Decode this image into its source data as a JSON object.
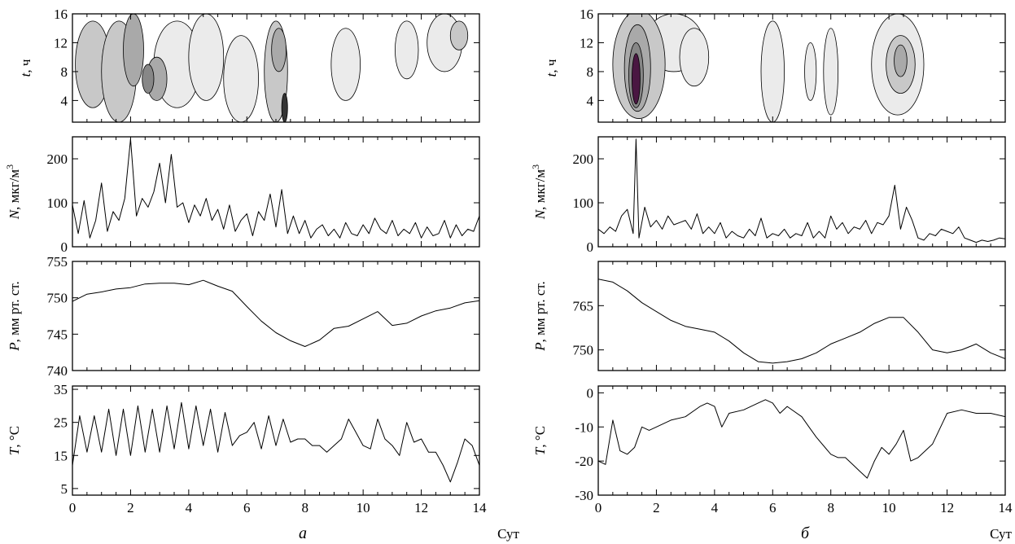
{
  "figure": {
    "unit_label": "Сут",
    "columns": [
      {
        "letter": "a"
      },
      {
        "letter": "б"
      }
    ]
  },
  "chart_data": [
    {
      "id": "a-contour",
      "column": "a",
      "type": "heatmap",
      "ylabel_var": "t",
      "ylabel_unit": ", ч",
      "xlim": [
        0,
        14
      ],
      "ylim": [
        1,
        16
      ],
      "yticks": [
        4,
        8,
        12,
        16
      ],
      "levels": [
        "#ebebeb",
        "#c8c8c8",
        "#a9a9a9",
        "#878787",
        "#333333"
      ],
      "blobs": [
        {
          "x": 0.7,
          "y": 9,
          "rx": 0.6,
          "ry": 6,
          "level": 2
        },
        {
          "x": 1.6,
          "y": 8,
          "rx": 0.6,
          "ry": 7,
          "level": 2
        },
        {
          "x": 2.1,
          "y": 11,
          "rx": 0.35,
          "ry": 5,
          "level": 3
        },
        {
          "x": 2.9,
          "y": 7,
          "rx": 0.35,
          "ry": 3,
          "level": 3
        },
        {
          "x": 2.6,
          "y": 7,
          "rx": 0.2,
          "ry": 2,
          "level": 4
        },
        {
          "x": 3.6,
          "y": 9,
          "rx": 0.8,
          "ry": 6,
          "level": 1
        },
        {
          "x": 4.6,
          "y": 10,
          "rx": 0.6,
          "ry": 6,
          "level": 1
        },
        {
          "x": 5.8,
          "y": 7,
          "rx": 0.6,
          "ry": 6,
          "level": 1
        },
        {
          "x": 7.0,
          "y": 8,
          "rx": 0.4,
          "ry": 7,
          "level": 2
        },
        {
          "x": 7.1,
          "y": 11,
          "rx": 0.25,
          "ry": 3,
          "level": 3
        },
        {
          "x": 7.3,
          "y": 3,
          "rx": 0.1,
          "ry": 2,
          "level": 5
        },
        {
          "x": 9.4,
          "y": 9,
          "rx": 0.5,
          "ry": 5,
          "level": 1
        },
        {
          "x": 11.5,
          "y": 11,
          "rx": 0.4,
          "ry": 4,
          "level": 1
        },
        {
          "x": 12.8,
          "y": 12,
          "rx": 0.6,
          "ry": 4,
          "level": 1
        },
        {
          "x": 13.3,
          "y": 13,
          "rx": 0.3,
          "ry": 2,
          "level": 2
        }
      ]
    },
    {
      "id": "a-N",
      "column": "a",
      "type": "line",
      "ylabel_var": "N",
      "ylabel_unit": ", мкг/м",
      "ylabel_sup": "3",
      "xlim": [
        0,
        14
      ],
      "ylim": [
        0,
        250
      ],
      "yticks": [
        0,
        100,
        200
      ],
      "x": [
        0,
        0.2,
        0.4,
        0.6,
        0.8,
        1,
        1.2,
        1.4,
        1.6,
        1.8,
        2,
        2.2,
        2.4,
        2.6,
        2.8,
        3,
        3.2,
        3.4,
        3.6,
        3.8,
        4,
        4.2,
        4.4,
        4.6,
        4.8,
        5,
        5.2,
        5.4,
        5.6,
        5.8,
        6,
        6.2,
        6.4,
        6.6,
        6.8,
        7,
        7.2,
        7.4,
        7.6,
        7.8,
        8,
        8.2,
        8.4,
        8.6,
        8.8,
        9,
        9.2,
        9.4,
        9.6,
        9.8,
        10,
        10.2,
        10.4,
        10.6,
        10.8,
        11,
        11.2,
        11.4,
        11.6,
        11.8,
        12,
        12.2,
        12.4,
        12.6,
        12.8,
        13,
        13.2,
        13.4,
        13.6,
        13.8,
        14
      ],
      "y": [
        95,
        30,
        105,
        20,
        60,
        145,
        35,
        80,
        60,
        110,
        245,
        70,
        110,
        90,
        125,
        190,
        100,
        210,
        90,
        100,
        55,
        95,
        70,
        110,
        60,
        85,
        40,
        95,
        35,
        60,
        75,
        25,
        80,
        60,
        120,
        45,
        130,
        30,
        70,
        30,
        60,
        20,
        40,
        50,
        25,
        40,
        20,
        55,
        30,
        25,
        50,
        30,
        65,
        40,
        30,
        60,
        25,
        40,
        30,
        55,
        20,
        45,
        25,
        30,
        60,
        20,
        50,
        25,
        40,
        35,
        70
      ]
    },
    {
      "id": "a-P",
      "column": "a",
      "type": "line",
      "ylabel_var": "P",
      "ylabel_unit": ", мм рт. ст.",
      "xlim": [
        0,
        14
      ],
      "ylim": [
        740,
        755
      ],
      "yticks": [
        740,
        745,
        750,
        755
      ],
      "x": [
        0,
        0.5,
        1,
        1.5,
        2,
        2.5,
        3,
        3.5,
        4,
        4.5,
        5,
        5.5,
        6,
        6.5,
        7,
        7.5,
        8,
        8.5,
        9,
        9.5,
        10,
        10.5,
        11,
        11.5,
        12,
        12.5,
        13,
        13.5,
        14
      ],
      "y": [
        749.5,
        750.5,
        750.8,
        751.2,
        751.4,
        751.9,
        752,
        752,
        751.8,
        752.4,
        751.6,
        750.9,
        748.8,
        746.8,
        745.2,
        744.1,
        743.3,
        744.2,
        745.8,
        746.1,
        747.1,
        748.1,
        746.2,
        746.5,
        747.5,
        748.2,
        748.6,
        749.3,
        749.6
      ]
    },
    {
      "id": "a-T",
      "column": "a",
      "type": "line",
      "ylabel_var": "T",
      "ylabel_unit": ", °C",
      "xlim": [
        0,
        14
      ],
      "ylim": [
        3,
        36
      ],
      "yticks": [
        5,
        15,
        25,
        35
      ],
      "x": [
        0,
        0.25,
        0.5,
        0.75,
        1,
        1.25,
        1.5,
        1.75,
        2,
        2.25,
        2.5,
        2.75,
        3,
        3.25,
        3.5,
        3.75,
        4,
        4.25,
        4.5,
        4.75,
        5,
        5.25,
        5.5,
        5.75,
        6,
        6.25,
        6.5,
        6.75,
        7,
        7.25,
        7.5,
        7.75,
        8,
        8.25,
        8.5,
        8.75,
        9,
        9.25,
        9.5,
        9.75,
        10,
        10.25,
        10.5,
        10.75,
        11,
        11.25,
        11.5,
        11.75,
        12,
        12.25,
        12.5,
        12.75,
        13,
        13.25,
        13.5,
        13.75,
        14
      ],
      "y": [
        12,
        27,
        16,
        27,
        16,
        29,
        15,
        29,
        15,
        30,
        16,
        29,
        16,
        30,
        17,
        31,
        17,
        30,
        18,
        29,
        16,
        28,
        18,
        21,
        22,
        25,
        17,
        27,
        18,
        26,
        19,
        20,
        20,
        18,
        18,
        16,
        18,
        20,
        26,
        22,
        18,
        17,
        26,
        20,
        18,
        15,
        25,
        19,
        20,
        16,
        16,
        12,
        7,
        13,
        20,
        18,
        12
      ]
    },
    {
      "id": "b-contour",
      "column": "б",
      "type": "heatmap",
      "ylabel_var": "t",
      "ylabel_unit": ", ч",
      "xlim": [
        0,
        14
      ],
      "ylim": [
        1,
        16
      ],
      "yticks": [
        4,
        8,
        12,
        16
      ],
      "levels": [
        "#ebebeb",
        "#c8c8c8",
        "#a9a9a9",
        "#878787",
        "#4a1742"
      ],
      "blobs": [
        {
          "x": 1.4,
          "y": 9,
          "rx": 0.9,
          "ry": 7.5,
          "level": 2
        },
        {
          "x": 1.35,
          "y": 8.5,
          "rx": 0.45,
          "ry": 6,
          "level": 3
        },
        {
          "x": 1.3,
          "y": 7.5,
          "rx": 0.25,
          "ry": 4.5,
          "level": 4
        },
        {
          "x": 1.3,
          "y": 7,
          "rx": 0.14,
          "ry": 3.5,
          "level": 5
        },
        {
          "x": 2.6,
          "y": 12,
          "rx": 1.0,
          "ry": 4,
          "level": 1
        },
        {
          "x": 3.3,
          "y": 10,
          "rx": 0.5,
          "ry": 4,
          "level": 1
        },
        {
          "x": 6.0,
          "y": 8,
          "rx": 0.4,
          "ry": 7,
          "level": 1
        },
        {
          "x": 7.3,
          "y": 8,
          "rx": 0.2,
          "ry": 4,
          "level": 1
        },
        {
          "x": 8.0,
          "y": 8,
          "rx": 0.25,
          "ry": 6,
          "level": 1
        },
        {
          "x": 10.3,
          "y": 9,
          "rx": 0.9,
          "ry": 7,
          "level": 1
        },
        {
          "x": 10.4,
          "y": 9,
          "rx": 0.5,
          "ry": 4,
          "level": 2
        },
        {
          "x": 10.4,
          "y": 9.5,
          "rx": 0.22,
          "ry": 2.2,
          "level": 3
        }
      ]
    },
    {
      "id": "b-N",
      "column": "б",
      "type": "line",
      "ylabel_var": "N",
      "ylabel_unit": ", мкг/м",
      "ylabel_sup": "3",
      "xlim": [
        0,
        14
      ],
      "ylim": [
        0,
        250
      ],
      "yticks": [
        0,
        100,
        200
      ],
      "x": [
        0,
        0.2,
        0.4,
        0.6,
        0.8,
        1,
        1.2,
        1.3,
        1.4,
        1.6,
        1.8,
        2,
        2.2,
        2.4,
        2.6,
        2.8,
        3,
        3.2,
        3.4,
        3.6,
        3.8,
        4,
        4.2,
        4.4,
        4.6,
        4.8,
        5,
        5.2,
        5.4,
        5.6,
        5.8,
        6,
        6.2,
        6.4,
        6.6,
        6.8,
        7,
        7.2,
        7.4,
        7.6,
        7.8,
        8,
        8.2,
        8.4,
        8.6,
        8.8,
        9,
        9.2,
        9.4,
        9.6,
        9.8,
        10,
        10.2,
        10.4,
        10.6,
        10.8,
        11,
        11.2,
        11.4,
        11.6,
        11.8,
        12,
        12.2,
        12.4,
        12.6,
        12.8,
        13,
        13.2,
        13.4,
        13.6,
        13.8,
        14
      ],
      "y": [
        40,
        30,
        45,
        35,
        70,
        85,
        30,
        245,
        20,
        90,
        45,
        60,
        40,
        70,
        50,
        55,
        60,
        40,
        75,
        30,
        45,
        30,
        55,
        20,
        35,
        25,
        20,
        40,
        25,
        65,
        20,
        30,
        25,
        40,
        20,
        30,
        25,
        55,
        20,
        35,
        20,
        70,
        40,
        55,
        30,
        45,
        40,
        60,
        30,
        55,
        50,
        70,
        140,
        40,
        90,
        60,
        20,
        15,
        30,
        25,
        40,
        35,
        30,
        45,
        20,
        15,
        10,
        15,
        12,
        15,
        20,
        18
      ]
    },
    {
      "id": "b-P",
      "column": "б",
      "type": "line",
      "ylabel_var": "P",
      "ylabel_unit": ", мм рт. ст.",
      "xlim": [
        0,
        14
      ],
      "ylim": [
        743,
        780
      ],
      "yticks": [
        750,
        765
      ],
      "x": [
        0,
        0.5,
        1,
        1.5,
        2,
        2.5,
        3,
        3.5,
        4,
        4.5,
        5,
        5.5,
        6,
        6.5,
        7,
        7.5,
        8,
        8.5,
        9,
        9.5,
        10,
        10.5,
        11,
        11.5,
        12,
        12.5,
        13,
        13.5,
        14
      ],
      "y": [
        774,
        773,
        770,
        766,
        763,
        760,
        758,
        757,
        756,
        753,
        749,
        746,
        745.5,
        746,
        747,
        749,
        752,
        754,
        756,
        759,
        761,
        761,
        756,
        750,
        749,
        750,
        752,
        749,
        747
      ]
    },
    {
      "id": "b-T",
      "column": "б",
      "type": "line",
      "ylabel_var": "T",
      "ylabel_unit": ", °C",
      "xlim": [
        0,
        14
      ],
      "ylim": [
        -30,
        2
      ],
      "yticks": [
        -30,
        -20,
        -10,
        0
      ],
      "x": [
        0,
        0.25,
        0.5,
        0.75,
        1,
        1.25,
        1.5,
        1.75,
        2,
        2.5,
        3,
        3.5,
        3.75,
        4,
        4.25,
        4.5,
        5,
        5.5,
        5.75,
        6,
        6.25,
        6.5,
        7,
        7.25,
        7.5,
        8,
        8.25,
        8.5,
        8.75,
        9,
        9.25,
        9.5,
        9.75,
        10,
        10.25,
        10.5,
        10.75,
        11,
        11.5,
        12,
        12.5,
        13,
        13.5,
        14
      ],
      "y": [
        -20,
        -21,
        -8,
        -17,
        -18,
        -16,
        -10,
        -11,
        -10,
        -8,
        -7,
        -4,
        -3,
        -4,
        -10,
        -6,
        -5,
        -3,
        -2,
        -3,
        -6,
        -4,
        -7,
        -10,
        -13,
        -18,
        -19,
        -19,
        -21,
        -23,
        -25,
        -20,
        -16,
        -18,
        -15,
        -11,
        -20,
        -19,
        -15,
        -6,
        -5,
        -6,
        -6,
        -7
      ]
    }
  ]
}
